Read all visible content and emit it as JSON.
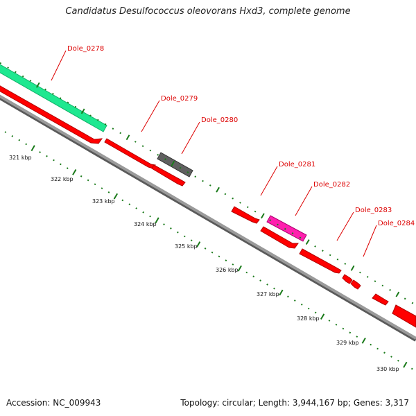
{
  "title": "Candidatus Desulfococcus oleovorans Hxd3, complete genome",
  "footer": {
    "accession": "Accession: NC_009943",
    "stats": "Topology: circular; Length: 3,944,167 bp; Genes: 3,317"
  },
  "colors": {
    "forward_cds": "#ff0000",
    "reverse_cds": "#ff0000",
    "rrna": "#1ee890",
    "pseudo": "#606060",
    "trna": "#ff1fae",
    "backbone": "#888888",
    "scale_ticks": "#1a7a1a",
    "gene_label": "#dd0000"
  },
  "scale": {
    "unit": "kbp",
    "ticks": [
      {
        "value": 321,
        "label": "321 kbp"
      },
      {
        "value": 322,
        "label": "322 kbp"
      },
      {
        "value": 323,
        "label": "323 kbp"
      },
      {
        "value": 324,
        "label": "324 kbp"
      },
      {
        "value": 325,
        "label": "325 kbp"
      },
      {
        "value": 326,
        "label": "326 kbp"
      },
      {
        "value": 327,
        "label": "327 kbp"
      },
      {
        "value": 328,
        "label": "328 kbp"
      },
      {
        "value": 329,
        "label": "329 kbp"
      },
      {
        "value": 330,
        "label": "330 kbp"
      }
    ]
  },
  "gene_labels": [
    {
      "id": "Dole_0278",
      "label": "Dole_0278"
    },
    {
      "id": "Dole_0279",
      "label": "Dole_0279"
    },
    {
      "id": "Dole_0280",
      "label": "Dole_0280"
    },
    {
      "id": "Dole_0281",
      "label": "Dole_0281"
    },
    {
      "id": "Dole_0282",
      "label": "Dole_0282"
    },
    {
      "id": "Dole_0283",
      "label": "Dole_0283"
    },
    {
      "id": "Dole_0284",
      "label": "Dole_0284"
    }
  ]
}
